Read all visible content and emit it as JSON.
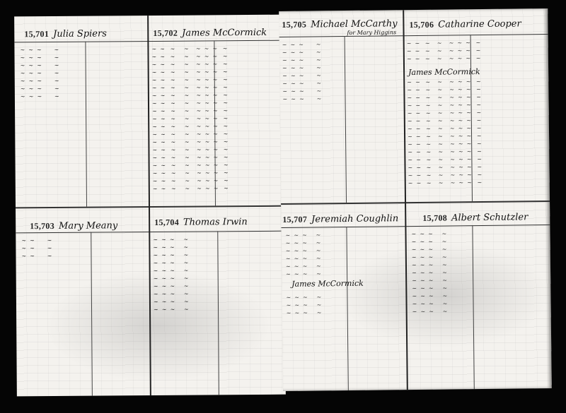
{
  "ledger": {
    "left_page": {
      "accounts": [
        {
          "number": "15,701",
          "name": "Julia Spiers"
        },
        {
          "number": "15,702",
          "name": "James McCormick"
        },
        {
          "number": "15,703",
          "name": "Mary Meany"
        },
        {
          "number": "15,704",
          "name": "Thomas Irwin"
        }
      ]
    },
    "right_page": {
      "accounts": [
        {
          "number": "15,705",
          "name": "Michael McCarthy",
          "note": "for Mary Higgins"
        },
        {
          "number": "15,706",
          "name": "Catharine Cooper",
          "sub_account": "James McCormick"
        },
        {
          "number": "15,707",
          "name": "Jeremiah Coughlin",
          "sub_account": "James McCormick"
        },
        {
          "number": "15,708",
          "name": "Albert Schutzler"
        }
      ]
    }
  }
}
